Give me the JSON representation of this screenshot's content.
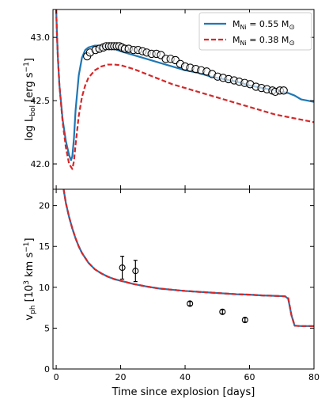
{
  "chart_data": [
    {
      "type": "line",
      "panel": "top",
      "ylabel": "log L_bol [erg s^-1]",
      "ylabel_parts": {
        "main": "log L",
        "sub": "bol",
        "unit_a": " [erg s",
        "sup": "−1",
        "unit_b": "]"
      },
      "xlim": [
        -1,
        80
      ],
      "ylim": [
        41.8,
        43.22
      ],
      "yticks": [
        42.0,
        42.5,
        43.0
      ],
      "ytick_labels": [
        "42.0",
        "42.5",
        "43.0"
      ],
      "series": [
        {
          "name": "M_Ni = 0.55 M_sun",
          "label_parts": {
            "pre": "M",
            "sub": "Ni",
            "post": " = 0.55 M",
            "sym": "⊙"
          },
          "color": "#1f77b4",
          "style": "solid",
          "x": [
            0,
            0.2,
            0.5,
            1,
            2,
            3,
            4,
            4.6,
            5,
            5.5,
            6,
            7,
            8,
            9,
            10,
            12,
            14,
            16,
            18,
            20,
            24,
            28,
            32,
            36,
            40,
            44,
            48,
            52,
            56,
            60,
            64,
            68,
            70,
            72,
            74,
            76,
            78,
            80
          ],
          "y": [
            43.22,
            43.05,
            42.85,
            42.62,
            42.35,
            42.18,
            42.07,
            42.03,
            42.06,
            42.2,
            42.42,
            42.7,
            42.84,
            42.9,
            42.92,
            42.935,
            42.935,
            42.925,
            42.91,
            42.89,
            42.86,
            42.83,
            42.8,
            42.77,
            42.74,
            42.72,
            42.69,
            42.67,
            42.65,
            42.62,
            42.6,
            42.58,
            42.57,
            42.56,
            42.54,
            42.51,
            42.5,
            42.49
          ]
        },
        {
          "name": "M_Ni = 0.38 M_sun",
          "label_parts": {
            "pre": "M",
            "sub": "Ni",
            "post": " = 0.38 M",
            "sym": "⊙"
          },
          "color": "#d62728",
          "style": "dashed",
          "x": [
            0,
            0.2,
            0.5,
            1,
            2,
            3,
            4,
            5,
            5.5,
            6,
            7,
            8,
            9,
            10,
            12,
            14,
            16,
            18,
            20,
            24,
            28,
            32,
            36,
            40,
            44,
            48,
            52,
            56,
            60,
            64,
            68,
            72,
            76,
            80
          ],
          "y": [
            43.22,
            43.05,
            42.85,
            42.62,
            42.33,
            42.13,
            42.0,
            41.96,
            42.02,
            42.15,
            42.38,
            42.53,
            42.62,
            42.68,
            42.74,
            42.77,
            42.785,
            42.785,
            42.78,
            42.75,
            42.71,
            42.67,
            42.63,
            42.6,
            42.57,
            42.54,
            42.51,
            42.48,
            42.45,
            42.42,
            42.39,
            42.37,
            42.35,
            42.33
          ]
        }
      ],
      "observations": {
        "marker": "open circle",
        "x": [
          9.6,
          10.5,
          12.2,
          13.4,
          14.6,
          15.5,
          16.4,
          17.2,
          18.0,
          18.8,
          19.6,
          20.4,
          21.3,
          22.5,
          24.0,
          25.4,
          26.8,
          28.1,
          29.6,
          31.1,
          32.5,
          34.0,
          35.5,
          37.0,
          38.5,
          40.0,
          41.6,
          43.3,
          45.0,
          46.7,
          48.4,
          50.1,
          51.8,
          53.5,
          55.2,
          56.8,
          58.5,
          60.2,
          62.0,
          63.7,
          65.4,
          67.1,
          68.0,
          69.4,
          70.6
        ],
        "y": [
          42.85,
          42.88,
          42.9,
          42.91,
          42.92,
          42.93,
          42.93,
          42.93,
          42.93,
          42.93,
          42.93,
          42.92,
          42.91,
          42.91,
          42.9,
          42.9,
          42.89,
          42.88,
          42.87,
          42.87,
          42.86,
          42.83,
          42.83,
          42.82,
          42.79,
          42.77,
          42.76,
          42.75,
          42.74,
          42.73,
          42.71,
          42.69,
          42.68,
          42.67,
          42.66,
          42.65,
          42.64,
          42.63,
          42.61,
          42.6,
          42.59,
          42.58,
          42.57,
          42.58,
          42.58
        ]
      }
    },
    {
      "type": "line",
      "panel": "bottom",
      "xlabel": "Time since explosion [days]",
      "ylabel": "v_ph [10^3 km s^-1]",
      "ylabel_parts": {
        "main": "v",
        "sub": "ph",
        "unit_a": " [10",
        "sup1": "3",
        "unit_b": " km s",
        "sup2": "−1",
        "unit_c": "]"
      },
      "xlim": [
        -1,
        80
      ],
      "ylim": [
        0,
        22
      ],
      "xticks": [
        0,
        20,
        40,
        60,
        80
      ],
      "xtick_labels": [
        "0",
        "20",
        "40",
        "60",
        "80"
      ],
      "yticks": [
        0,
        5,
        10,
        15,
        20
      ],
      "ytick_labels": [
        "0",
        "5",
        "10",
        "15",
        "20"
      ],
      "series": [
        {
          "name": "M_Ni = 0.55 M_sun",
          "color": "#1f77b4",
          "style": "solid",
          "x": [
            2.3,
            3,
            4,
            5,
            6,
            7,
            8,
            10,
            12,
            14,
            16,
            18,
            20,
            24,
            28,
            32,
            36,
            40,
            44,
            48,
            52,
            56,
            60,
            64,
            68,
            71,
            72,
            73,
            74,
            76,
            78,
            80
          ],
          "y": [
            22,
            20.3,
            18.6,
            17.2,
            16.0,
            15.0,
            14.2,
            13.0,
            12.2,
            11.7,
            11.3,
            11.0,
            10.8,
            10.4,
            10.1,
            9.85,
            9.7,
            9.55,
            9.45,
            9.35,
            9.25,
            9.15,
            9.1,
            9.0,
            8.95,
            8.9,
            8.6,
            6.6,
            5.3,
            5.25,
            5.25,
            5.25
          ]
        },
        {
          "name": "M_Ni = 0.38 M_sun",
          "color": "#d62728",
          "style": "dashed",
          "x": [
            2.3,
            3,
            4,
            5,
            6,
            7,
            8,
            10,
            12,
            14,
            16,
            18,
            20,
            24,
            28,
            32,
            36,
            40,
            44,
            48,
            52,
            56,
            60,
            64,
            68,
            71,
            72,
            73,
            74,
            76,
            78,
            80
          ],
          "y": [
            22,
            20.3,
            18.6,
            17.2,
            16.0,
            15.0,
            14.2,
            13.0,
            12.2,
            11.7,
            11.3,
            11.0,
            10.8,
            10.4,
            10.1,
            9.85,
            9.7,
            9.55,
            9.45,
            9.35,
            9.25,
            9.15,
            9.1,
            9.0,
            8.95,
            8.9,
            8.7,
            6.6,
            5.3,
            5.25,
            5.25,
            5.25
          ]
        }
      ],
      "observations": {
        "marker": "open circle with error bar",
        "x": [
          20.5,
          24.6,
          41.5,
          51.6,
          58.6
        ],
        "y": [
          12.4,
          12.0,
          8.0,
          7.0,
          6.0
        ],
        "yerr": [
          1.4,
          1.3,
          0.25,
          0.25,
          0.25
        ]
      }
    }
  ],
  "colors": {
    "blue": "#1f77b4",
    "red": "#d62728"
  }
}
